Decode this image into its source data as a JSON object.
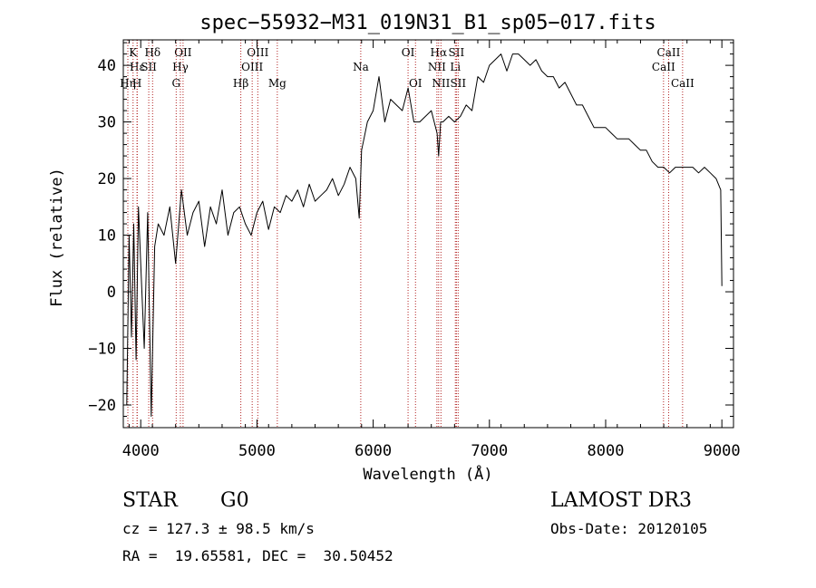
{
  "chart_data": {
    "type": "line",
    "title": "spec−55932−M31_019N31_B1_sp05−017.fits",
    "xlabel": "Wavelength (Å)",
    "ylabel": "Flux (relative)",
    "xlim": [
      3850,
      9100
    ],
    "ylim": [
      -24,
      44.5
    ],
    "x_ticks": [
      4000,
      5000,
      6000,
      7000,
      8000,
      9000
    ],
    "x_tick_labels": [
      "4000",
      "5000",
      "6000",
      "7000",
      "8000",
      "9000"
    ],
    "y_ticks": [
      -20,
      -10,
      0,
      10,
      20,
      30,
      40
    ],
    "y_tick_labels": [
      "−20",
      "−10",
      "0",
      "10",
      "20",
      "30",
      "40"
    ],
    "series": [
      {
        "name": "spectrum",
        "x": [
          3880,
          3900,
          3920,
          3940,
          3960,
          3980,
          4000,
          4030,
          4060,
          4090,
          4120,
          4150,
          4200,
          4250,
          4300,
          4350,
          4400,
          4450,
          4500,
          4550,
          4600,
          4650,
          4700,
          4750,
          4800,
          4850,
          4900,
          4950,
          5000,
          5050,
          5100,
          5150,
          5200,
          5250,
          5300,
          5350,
          5400,
          5450,
          5500,
          5550,
          5600,
          5650,
          5700,
          5750,
          5800,
          5850,
          5880,
          5900,
          5920,
          5950,
          6000,
          6050,
          6100,
          6150,
          6200,
          6250,
          6300,
          6350,
          6400,
          6450,
          6500,
          6550,
          6563,
          6580,
          6600,
          6650,
          6700,
          6750,
          6800,
          6850,
          6900,
          6950,
          7000,
          7050,
          7100,
          7150,
          7200,
          7250,
          7300,
          7350,
          7400,
          7450,
          7500,
          7550,
          7600,
          7650,
          7700,
          7750,
          7800,
          7850,
          7900,
          7950,
          8000,
          8050,
          8100,
          8150,
          8200,
          8250,
          8300,
          8350,
          8400,
          8450,
          8500,
          8550,
          8600,
          8650,
          8700,
          8750,
          8800,
          8850,
          8900,
          8950,
          8990,
          9000
        ],
        "y": [
          -20,
          10,
          -8,
          12,
          -12,
          15,
          5,
          -10,
          14,
          -22,
          8,
          12,
          10,
          15,
          5,
          18,
          10,
          14,
          16,
          8,
          15,
          12,
          18,
          10,
          14,
          15,
          12,
          10,
          14,
          16,
          11,
          15,
          14,
          17,
          16,
          18,
          15,
          19,
          16,
          17,
          18,
          20,
          17,
          19,
          22,
          20,
          13,
          25,
          27,
          30,
          32,
          38,
          30,
          34,
          33,
          32,
          36,
          30,
          30,
          31,
          32,
          28,
          24,
          30,
          30,
          31,
          30,
          31,
          33,
          32,
          38,
          37,
          40,
          41,
          42,
          39,
          42,
          42,
          41,
          40,
          41,
          39,
          38,
          38,
          36,
          37,
          35,
          33,
          33,
          31,
          29,
          29,
          29,
          28,
          27,
          27,
          27,
          26,
          25,
          25,
          23,
          22,
          22,
          21,
          22,
          22,
          22,
          22,
          21,
          22,
          21,
          20,
          18,
          1
        ]
      }
    ],
    "line_markers": [
      {
        "label": "K",
        "x": 3934,
        "row": 1
      },
      {
        "label": "Hε",
        "x": 3970,
        "row": 2
      },
      {
        "label": "H",
        "x": 3968,
        "row": 3
      },
      {
        "label": "Hη",
        "x": 3889,
        "row": 3
      },
      {
        "label": "Hδ",
        "x": 4102,
        "row": 1
      },
      {
        "label": "SII",
        "x": 4069,
        "row": 2
      },
      {
        "label": "OII",
        "x": 4364,
        "row": 1
      },
      {
        "label": "Hγ",
        "x": 4341,
        "row": 2
      },
      {
        "label": "G",
        "x": 4305,
        "row": 3
      },
      {
        "label": "OIII",
        "x": 5007,
        "row": 1
      },
      {
        "label": "OIII",
        "x": 4959,
        "row": 2
      },
      {
        "label": "Hβ",
        "x": 4861,
        "row": 3
      },
      {
        "label": "Mg",
        "x": 5175,
        "row": 3
      },
      {
        "label": "Na",
        "x": 5893,
        "row": 2
      },
      {
        "label": "OI",
        "x": 6300,
        "row": 1
      },
      {
        "label": "OI",
        "x": 6364,
        "row": 3
      },
      {
        "label": "Hα",
        "x": 6563,
        "row": 1
      },
      {
        "label": "SII",
        "x": 6716,
        "row": 1
      },
      {
        "label": "NII",
        "x": 6548,
        "row": 2
      },
      {
        "label": "Li",
        "x": 6707,
        "row": 2
      },
      {
        "label": "NII",
        "x": 6583,
        "row": 3
      },
      {
        "label": "SII",
        "x": 6731,
        "row": 3
      },
      {
        "label": "CaII",
        "x": 8542,
        "row": 1
      },
      {
        "label": "CaII",
        "x": 8498,
        "row": 2
      },
      {
        "label": "CaII",
        "x": 8662,
        "row": 3
      }
    ]
  },
  "info": {
    "object_type": "STAR",
    "subclass": "G0",
    "survey": "LAMOST DR3",
    "redshift": "cz = 127.3 ± 98.5 km/s",
    "obs_date": "Obs-Date: 20120105",
    "coords": "RA =  19.65581, DEC =  30.50452"
  },
  "colors": {
    "axes": "#000000",
    "spectrum": "#000000",
    "marker_line": "#b22222",
    "text": "#000000"
  }
}
